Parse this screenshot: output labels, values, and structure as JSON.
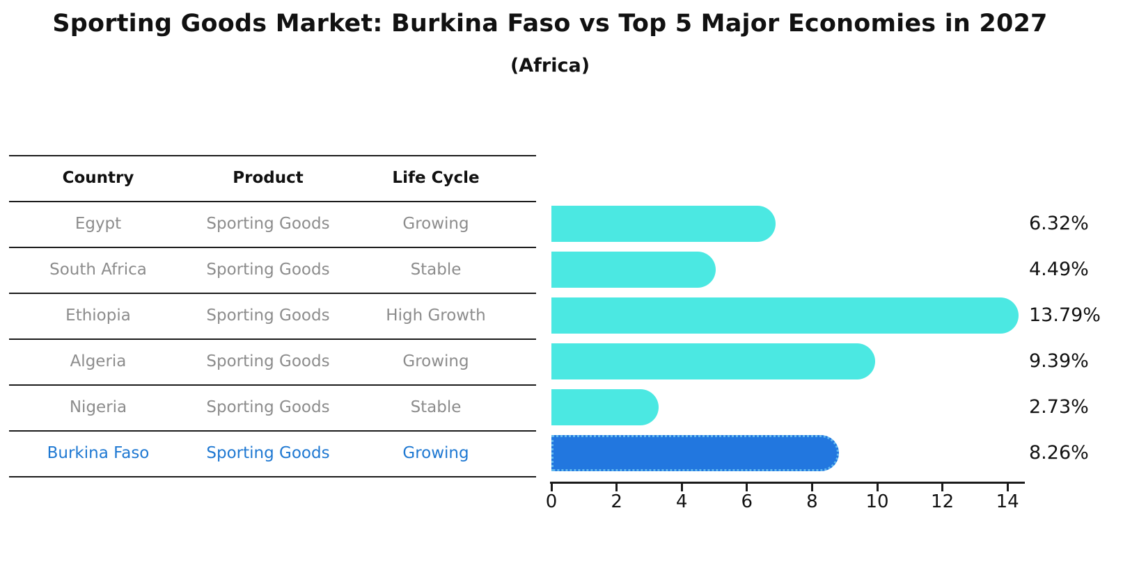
{
  "title": "Sporting Goods Market: Burkina Faso vs Top 5 Major Economies in 2027",
  "subtitle": "(Africa)",
  "table": {
    "headers": [
      "Country",
      "Product",
      "Life Cycle"
    ],
    "rows": [
      {
        "country": "Egypt",
        "product": "Sporting Goods",
        "life_cycle": "Growing",
        "highlight": false
      },
      {
        "country": "South Africa",
        "product": "Sporting Goods",
        "life_cycle": "Stable",
        "highlight": false
      },
      {
        "country": "Ethiopia",
        "product": "Sporting Goods",
        "life_cycle": "High Growth",
        "highlight": false
      },
      {
        "country": "Algeria",
        "product": "Sporting Goods",
        "life_cycle": "Growing",
        "highlight": false
      },
      {
        "country": "Nigeria",
        "product": "Sporting Goods",
        "life_cycle": "Stable",
        "highlight": false
      },
      {
        "country": "Burkina Faso",
        "product": "Sporting Goods",
        "life_cycle": "Growing",
        "highlight": true
      }
    ]
  },
  "chart_data": {
    "type": "bar",
    "orientation": "horizontal",
    "title": "Sporting Goods Market: Burkina Faso vs Top 5 Major Economies in 2027",
    "subtitle": "(Africa)",
    "categories": [
      "Egypt",
      "South Africa",
      "Ethiopia",
      "Algeria",
      "Nigeria",
      "Burkina Faso"
    ],
    "values": [
      6.32,
      4.49,
      13.79,
      9.39,
      2.73,
      8.26
    ],
    "value_labels": [
      "6.32%",
      "4.49%",
      "13.79%",
      "9.39%",
      "2.73%",
      "8.26%"
    ],
    "x_ticks": [
      0,
      2,
      4,
      6,
      8,
      10,
      12,
      14
    ],
    "xlim": [
      0,
      14.5
    ],
    "highlight_index": 5,
    "grid": false,
    "legend": "none"
  },
  "colors": {
    "bar": "#4BE8E2",
    "highlight_bar": "#2277DF",
    "highlight_border": "#63B9EE",
    "highlight_text": "#1E78D2",
    "row_text": "#8C8C8C",
    "header_text": "#111111",
    "axis": "#1A1A1A",
    "label_text": "#111111",
    "background": "#FFFFFF"
  }
}
